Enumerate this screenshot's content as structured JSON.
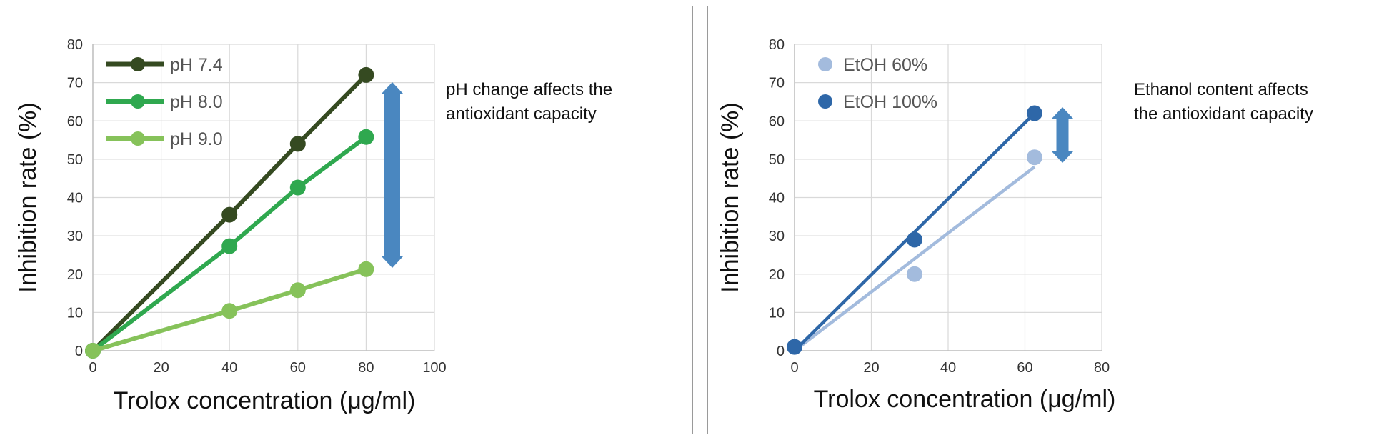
{
  "chart_data": [
    {
      "type": "line",
      "xlabel": "Trolox concentration (μg/ml)",
      "ylabel": "Inhibition rate (%)",
      "xlim": [
        0,
        100
      ],
      "ylim": [
        0,
        80
      ],
      "x_ticks": [
        0,
        20,
        40,
        60,
        80,
        100
      ],
      "y_ticks": [
        0,
        10,
        20,
        30,
        40,
        50,
        60,
        70,
        80
      ],
      "grid": true,
      "legend": "top-left",
      "annotation": "pH change affects the antioxidant capacity",
      "series": [
        {
          "name": "pH 7.4",
          "color": "#354a21",
          "x": [
            0,
            40,
            60,
            80
          ],
          "y": [
            0,
            35.5,
            54,
            72
          ]
        },
        {
          "name": "pH 8.0",
          "color": "#2fa84f",
          "x": [
            0,
            40,
            60,
            80
          ],
          "y": [
            0,
            27.3,
            42.6,
            55.8
          ]
        },
        {
          "name": "pH 9.0",
          "color": "#86c25a",
          "x": [
            0,
            40,
            60,
            80
          ],
          "y": [
            0,
            10.4,
            15.8,
            21.3
          ]
        }
      ]
    },
    {
      "type": "scatter",
      "xlabel": "Trolox concentration (μg/ml)",
      "ylabel": "Inhibition rate (%)",
      "xlim": [
        0,
        80
      ],
      "ylim": [
        0,
        80
      ],
      "x_ticks": [
        0,
        20,
        40,
        60,
        80
      ],
      "y_ticks": [
        0,
        10,
        20,
        30,
        40,
        50,
        60,
        70,
        80
      ],
      "grid": true,
      "legend": "top-left",
      "annotation": "Ethanol content affects the antioxidant capacity",
      "series": [
        {
          "name": "EtOH 60%",
          "color": "#a3bbdd",
          "x": [
            0,
            31.25,
            62.5
          ],
          "y": [
            1,
            20,
            50.5
          ],
          "trendline": [
            [
              0,
              0
            ],
            [
              62.5,
              48
            ]
          ]
        },
        {
          "name": "EtOH 100%",
          "color": "#2e67a8",
          "x": [
            0,
            31.25,
            62.5
          ],
          "y": [
            1,
            29,
            62
          ],
          "trendline": [
            [
              0,
              0
            ],
            [
              62.5,
              62
            ]
          ]
        }
      ]
    }
  ],
  "notes": {
    "left": "pH change affects the\nantioxidant capacity",
    "right": "Ethanol content affects\nthe antioxidant capacity"
  },
  "colors": {
    "arrow": "#4a87c0",
    "grid": "#d9d9d9",
    "axis": "#bfbfbf"
  }
}
